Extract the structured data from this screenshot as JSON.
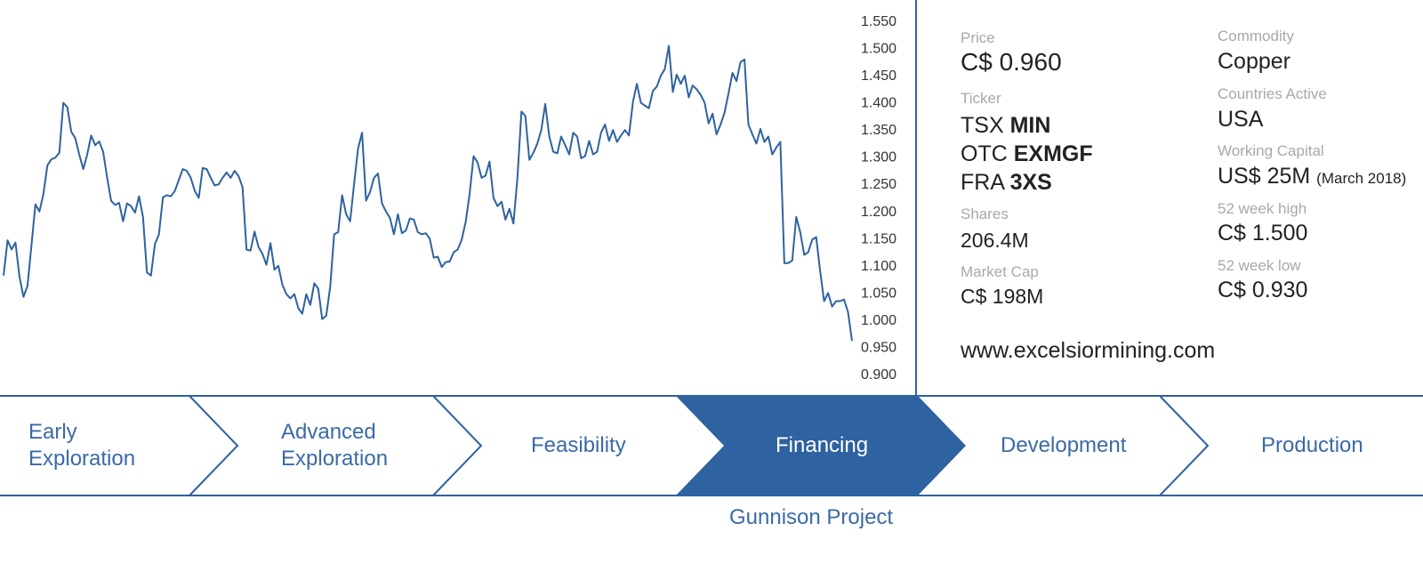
{
  "chart_data": {
    "type": "line",
    "series": [
      {
        "values": [
          1.082,
          1.147,
          1.13,
          1.143,
          1.08,
          1.043,
          1.063,
          1.138,
          1.213,
          1.2,
          1.232,
          1.285,
          1.296,
          1.299,
          1.308,
          1.4,
          1.392,
          1.347,
          1.335,
          1.305,
          1.278,
          1.305,
          1.34,
          1.322,
          1.329,
          1.31,
          1.262,
          1.22,
          1.212,
          1.216,
          1.182,
          1.215,
          1.21,
          1.198,
          1.228,
          1.19,
          1.088,
          1.082,
          1.14,
          1.158,
          1.226,
          1.23,
          1.228,
          1.238,
          1.258,
          1.278,
          1.275,
          1.262,
          1.238,
          1.225,
          1.28,
          1.278,
          1.262,
          1.248,
          1.25,
          1.262,
          1.272,
          1.262,
          1.275,
          1.265,
          1.245,
          1.13,
          1.128,
          1.163,
          1.135,
          1.122,
          1.102,
          1.142,
          1.093,
          1.1,
          1.065,
          1.048,
          1.04,
          1.048,
          1.022,
          1.012,
          1.048,
          1.028,
          1.068,
          1.058,
          1.002,
          1.008,
          1.062,
          1.158,
          1.162,
          1.23,
          1.195,
          1.182,
          1.25,
          1.316,
          1.345,
          1.22,
          1.236,
          1.262,
          1.27,
          1.215,
          1.2,
          1.188,
          1.158,
          1.195,
          1.16,
          1.165,
          1.187,
          1.185,
          1.162,
          1.158,
          1.16,
          1.15,
          1.115,
          1.117,
          1.098,
          1.107,
          1.108,
          1.125,
          1.13,
          1.148,
          1.18,
          1.232,
          1.302,
          1.29,
          1.262,
          1.266,
          1.292,
          1.225,
          1.21,
          1.218,
          1.185,
          1.205,
          1.178,
          1.262,
          1.384,
          1.376,
          1.295,
          1.308,
          1.325,
          1.35,
          1.398,
          1.338,
          1.31,
          1.307,
          1.338,
          1.322,
          1.305,
          1.345,
          1.338,
          1.298,
          1.302,
          1.33,
          1.305,
          1.31,
          1.345,
          1.36,
          1.33,
          1.35,
          1.328,
          1.34,
          1.35,
          1.34,
          1.402,
          1.435,
          1.4,
          1.395,
          1.39,
          1.422,
          1.43,
          1.45,
          1.462,
          1.505,
          1.42,
          1.452,
          1.435,
          1.45,
          1.41,
          1.432,
          1.425,
          1.415,
          1.4,
          1.362,
          1.38,
          1.342,
          1.36,
          1.382,
          1.418,
          1.455,
          1.44,
          1.475,
          1.48,
          1.36,
          1.342,
          1.325,
          1.352,
          1.328,
          1.338,
          1.305,
          1.318,
          1.328,
          1.105,
          1.105,
          1.11,
          1.19,
          1.162,
          1.12,
          1.125,
          1.148,
          1.153,
          1.09,
          1.035,
          1.05,
          1.025,
          1.035,
          1.035,
          1.038,
          1.015,
          0.962
        ]
      }
    ],
    "ylim": [
      0.9,
      1.55
    ],
    "yticks": [
      "1.550",
      "1.500",
      "1.450",
      "1.400",
      "1.350",
      "1.300",
      "1.250",
      "1.200",
      "1.150",
      "1.100",
      "1.050",
      "1.000",
      "0.950",
      "0.900"
    ],
    "grid": false,
    "colors": {
      "line": "#2e62a0"
    }
  },
  "info": {
    "price_label": "Price",
    "price_value": "C$ 0.960",
    "ticker_label": "Ticker",
    "tickers": [
      {
        "exchange": "TSX ",
        "symbol": "MIN"
      },
      {
        "exchange": "OTC ",
        "symbol": "EXMGF"
      },
      {
        "exchange": "FRA ",
        "symbol": "3XS"
      }
    ],
    "shares_label": "Shares",
    "shares_value": "206.4M",
    "market_cap_label": "Market Cap",
    "market_cap_value": "C$ 198M",
    "commodity_label": "Commodity",
    "commodity_value": "Copper",
    "countries_label": "Countries Active",
    "countries_value": "USA",
    "working_capital_label": "Working Capital",
    "working_capital_value": "US$ 25M",
    "working_capital_note": "(March 2018)",
    "high_label": "52 week high",
    "high_value": "C$ 1.500",
    "low_label": "52 week low",
    "low_value": "C$ 0.930",
    "website": "www.excelsiormining.com"
  },
  "stages": [
    {
      "line1": "Early",
      "line2": "Exploration",
      "active": false
    },
    {
      "line1": "Advanced",
      "line2": "Exploration",
      "active": false
    },
    {
      "line1": "Feasibility",
      "line2": "",
      "active": false
    },
    {
      "line1": "Financing",
      "line2": "",
      "active": true
    },
    {
      "line1": "Development",
      "line2": "",
      "active": false
    },
    {
      "line1": "Production",
      "line2": "",
      "active": false
    }
  ],
  "project_label": "Gunnison Project",
  "colors": {
    "accent": "#2e62a0",
    "stage_text": "#3b6aa5",
    "label_grey": "#a8a8a8"
  }
}
